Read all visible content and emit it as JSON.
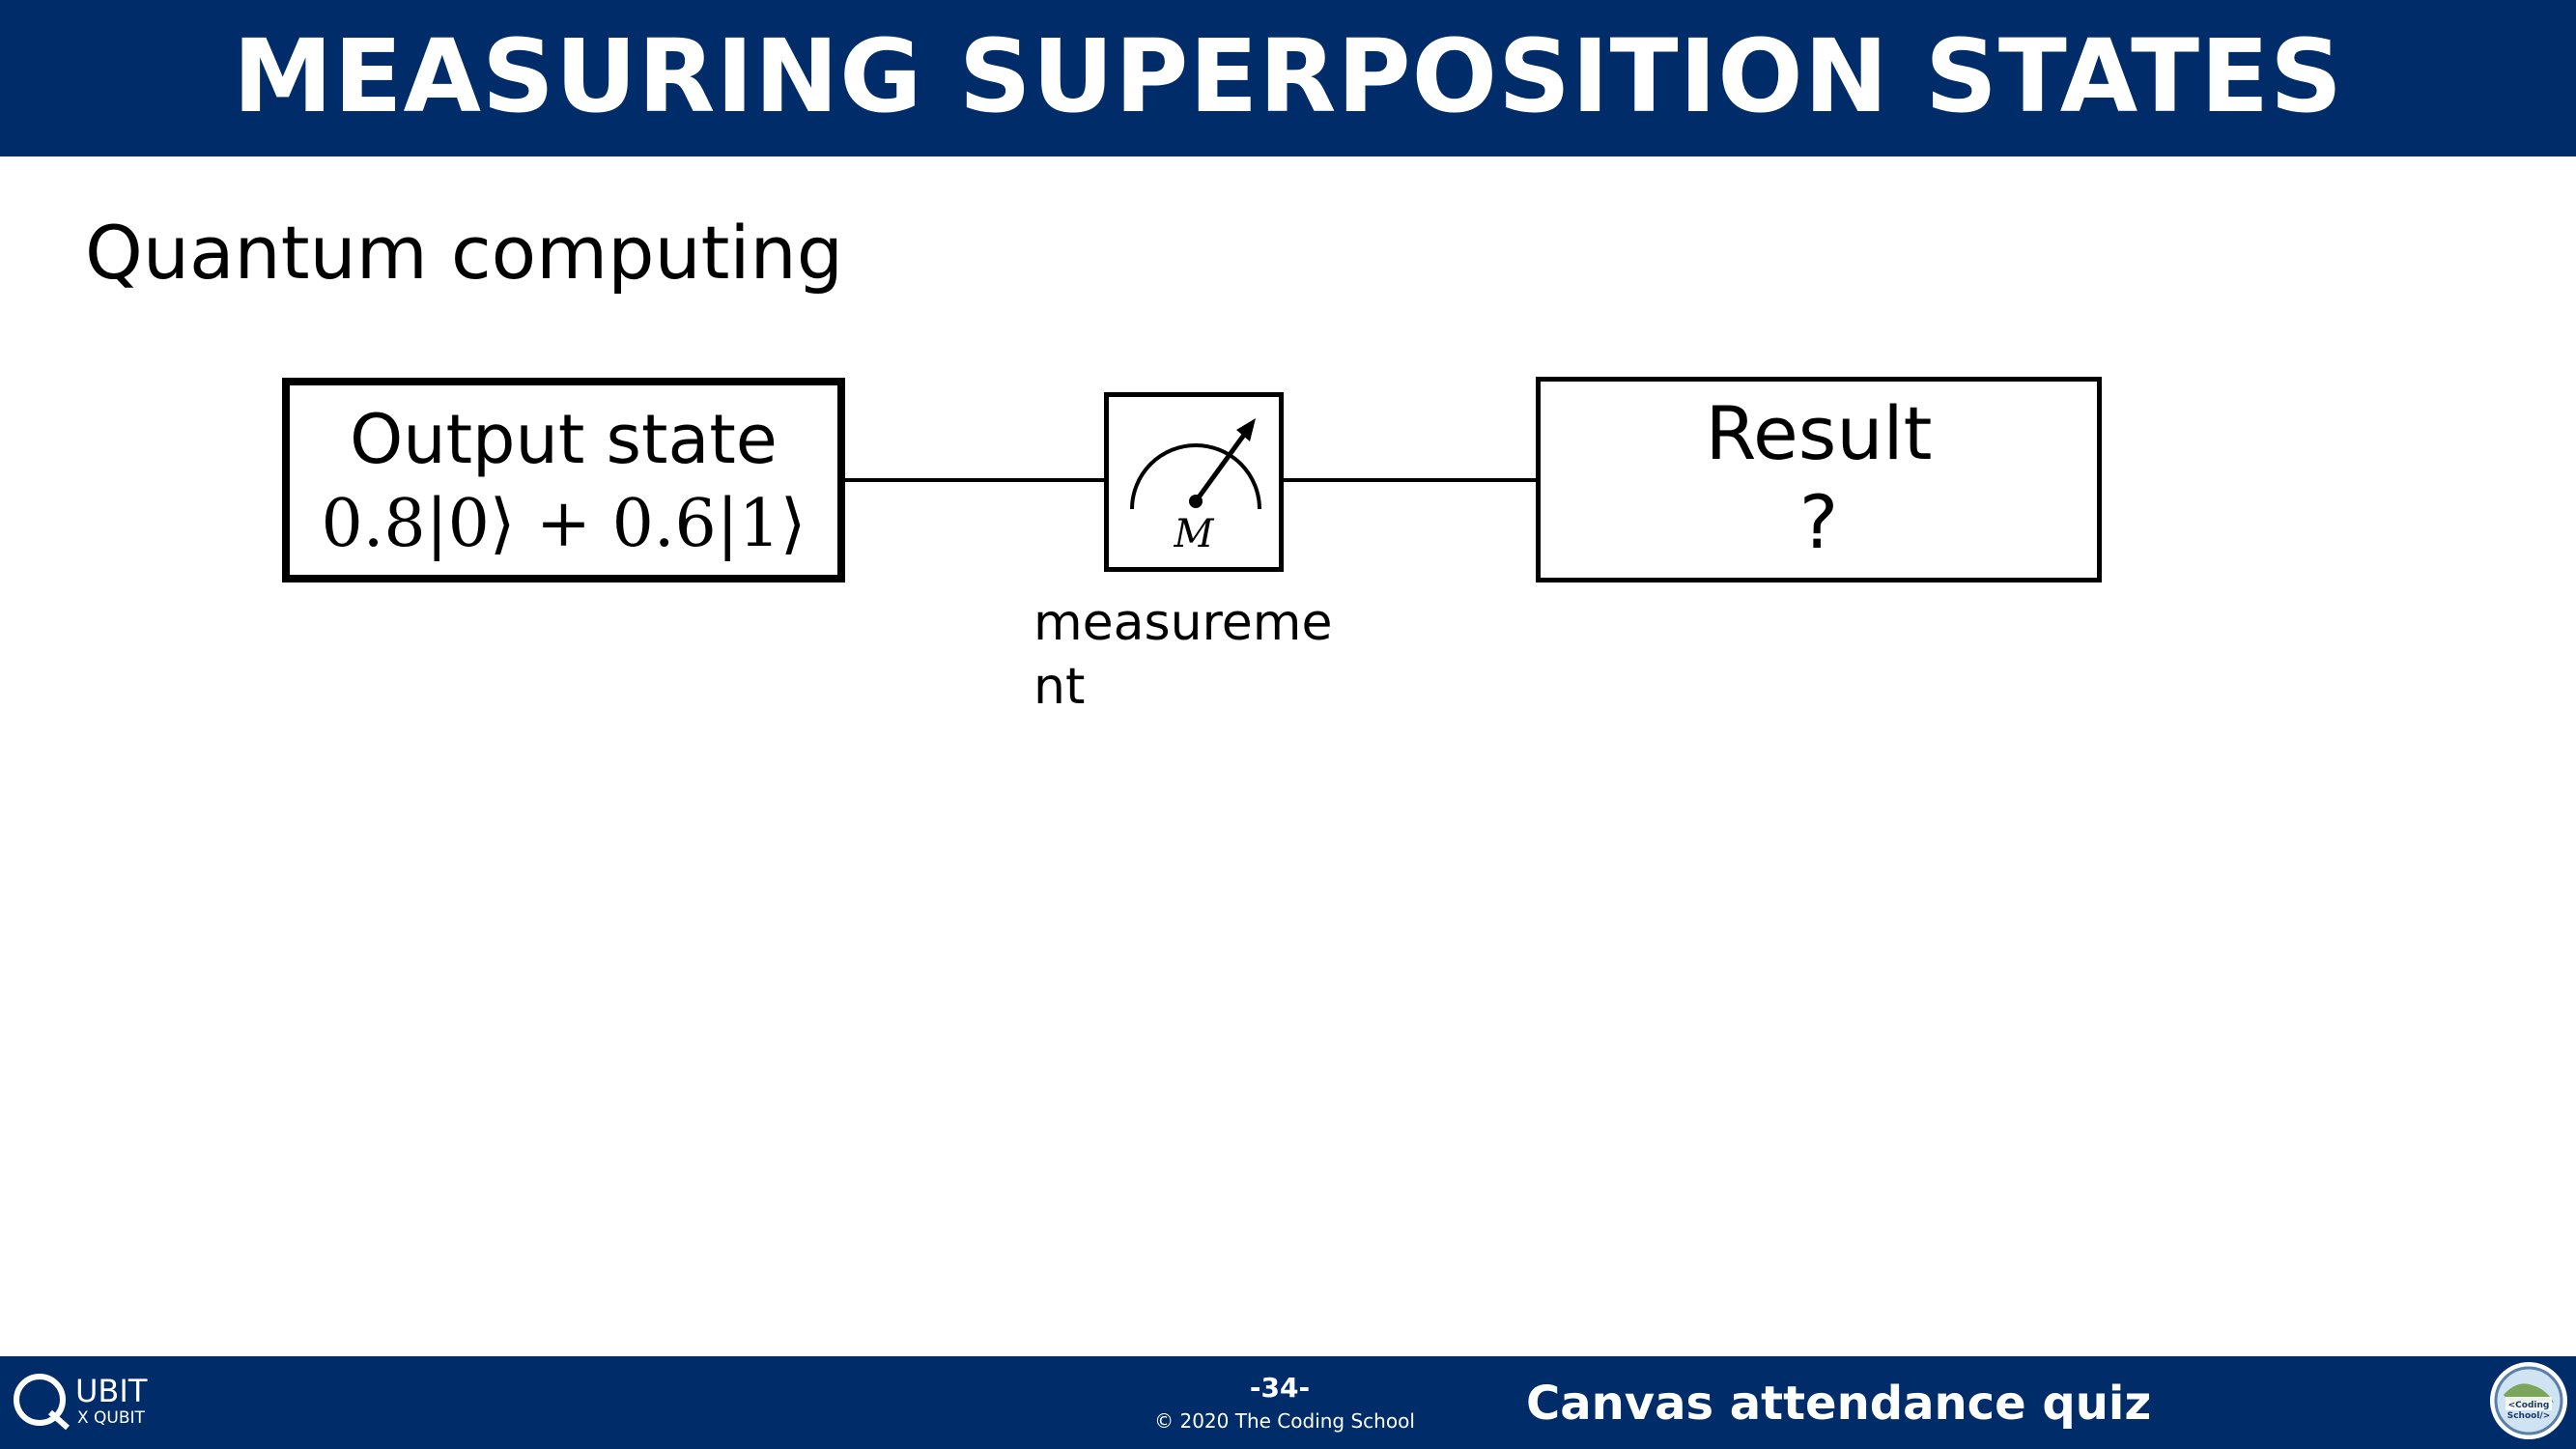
{
  "header": {
    "title": "MEASURING SUPERPOSITION STATES"
  },
  "main": {
    "subtitle": "Quantum computing",
    "output_box": {
      "label": "Output state",
      "state": "0.8|0⟩ + 0.6|1⟩"
    },
    "measurement": {
      "gate_letter": "M",
      "caption": "measurement"
    },
    "result_box": {
      "label": "Result",
      "value": "?"
    }
  },
  "footer": {
    "logo_main": "UBIT",
    "logo_sub": "X QUBIT",
    "page_number": "-34-",
    "copyright": "© 2020 The Coding School",
    "quiz_link": "Canvas attendance quiz"
  },
  "colors": {
    "brand_navy": "#002d6a",
    "background": "#ffffff",
    "ink": "#000000"
  },
  "icons": {
    "meter": "measurement-meter-icon",
    "logo": "qubit-logo-icon",
    "school_logo": "coding-school-logo-icon"
  }
}
